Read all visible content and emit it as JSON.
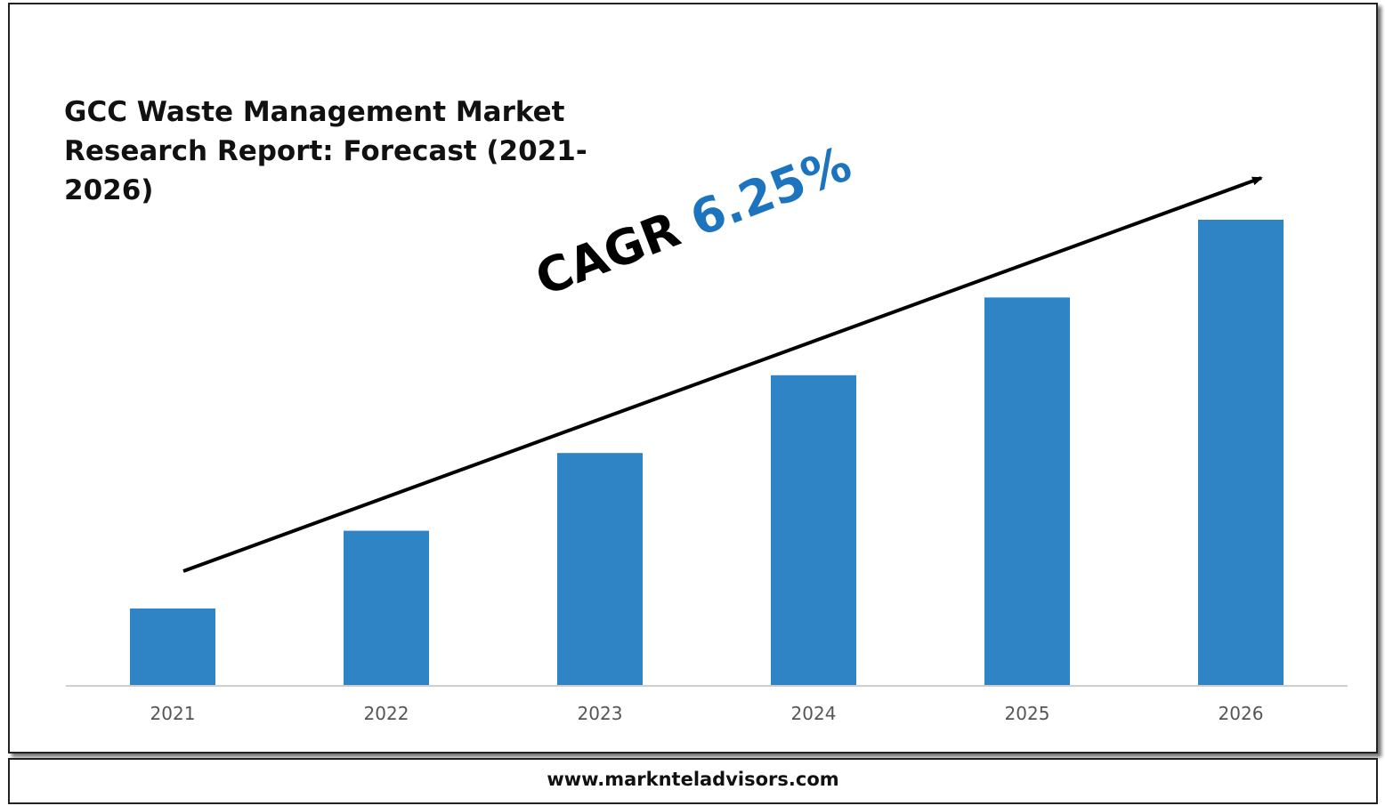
{
  "title": "GCC Waste Management Market Research Report: Forecast (2021-2026)",
  "cagr": {
    "label": "CAGR",
    "value": "6.25%"
  },
  "footer": {
    "website": "www.marknteladvisors.com"
  },
  "colors": {
    "bar": "#2e84c4",
    "cagr_value": "#1c73be",
    "axis": "#cfcfcf",
    "arrow": "#000000"
  },
  "chart_data": {
    "type": "bar",
    "title": "GCC Waste Management Market Research Report: Forecast (2021-2026)",
    "categories": [
      "2021",
      "2022",
      "2023",
      "2024",
      "2025",
      "2026"
    ],
    "values": [
      1,
      2,
      3,
      4,
      5,
      6
    ],
    "value_note": "relative bar heights; no values printed",
    "grid": false,
    "annotation": "CAGR 6.25%"
  }
}
